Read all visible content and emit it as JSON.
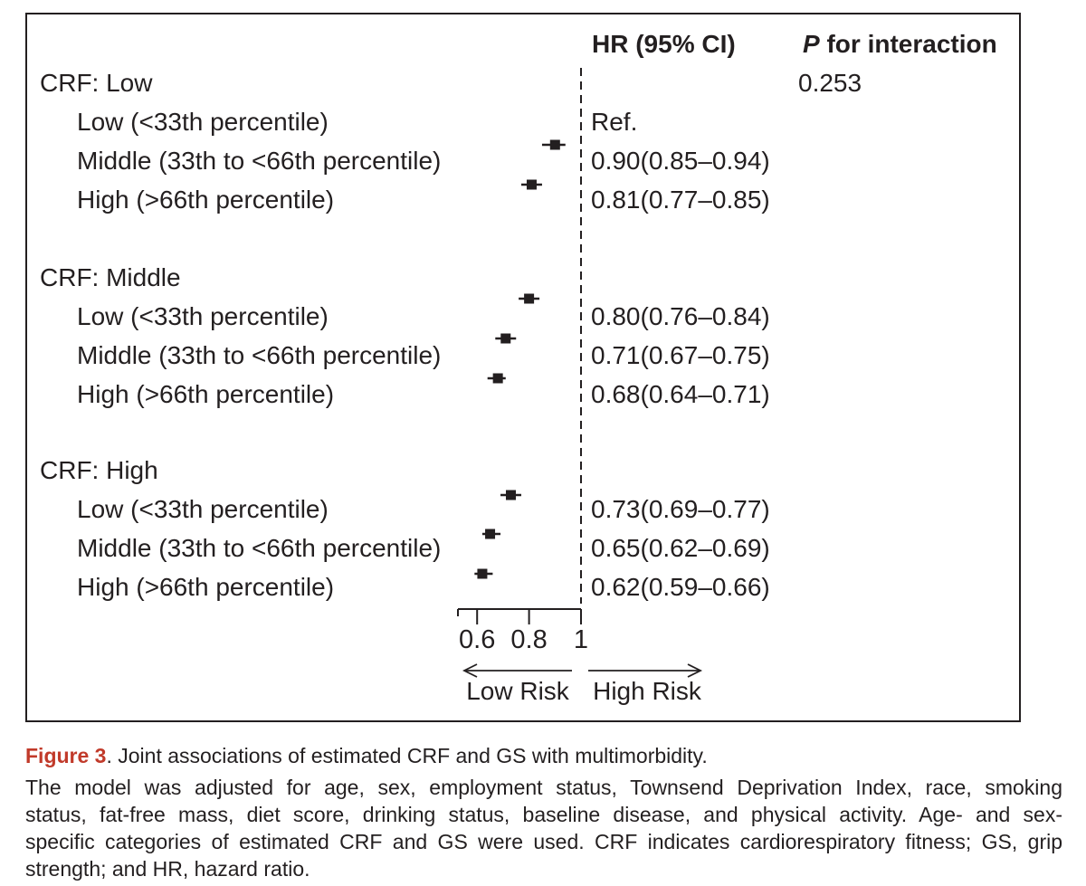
{
  "colors": {
    "ink": "#231f20",
    "figure_label_red": "#c13a2a"
  },
  "figure": {
    "header": {
      "hr_ci": "HR (95% CI)",
      "p_label": "P",
      "p_rest": " for interaction"
    },
    "p_value": "0.253"
  },
  "chart_data": {
    "type": "forest",
    "title": "Joint associations of estimated CRF and GS with multimorbidity",
    "x_axis": {
      "scale": "linear",
      "range_shown": [
        0.55,
        1.0
      ],
      "ticks": [
        0.6,
        0.8,
        1
      ],
      "tick_labels": [
        "0.6",
        "0.8",
        "1"
      ],
      "reference_line": 1.0,
      "direction_left": "Low Risk",
      "direction_right": "High Risk"
    },
    "p_for_interaction": "0.253",
    "groups": [
      {
        "label": "CRF: Low",
        "rows": [
          {
            "label": "Low (<33th percentile)",
            "hr_text": "Ref.",
            "hr": null,
            "lo": null,
            "hi": null
          },
          {
            "label": "Middle (33th to <66th percentile)",
            "hr_text": "0.90(0.85–0.94)",
            "hr": 0.9,
            "lo": 0.85,
            "hi": 0.94
          },
          {
            "label": "High (>66th percentile)",
            "hr_text": "0.81(0.77–0.85)",
            "hr": 0.81,
            "lo": 0.77,
            "hi": 0.85
          }
        ]
      },
      {
        "label": "CRF: Middle",
        "rows": [
          {
            "label": "Low (<33th percentile)",
            "hr_text": "0.80(0.76–0.84)",
            "hr": 0.8,
            "lo": 0.76,
            "hi": 0.84
          },
          {
            "label": "Middle (33th to <66th percentile)",
            "hr_text": "0.71(0.67–0.75)",
            "hr": 0.71,
            "lo": 0.67,
            "hi": 0.75
          },
          {
            "label": "High (>66th percentile)",
            "hr_text": "0.68(0.64–0.71)",
            "hr": 0.68,
            "lo": 0.64,
            "hi": 0.71
          }
        ]
      },
      {
        "label": "CRF: High",
        "rows": [
          {
            "label": "Low (<33th percentile)",
            "hr_text": "0.73(0.69–0.77)",
            "hr": 0.73,
            "lo": 0.69,
            "hi": 0.77
          },
          {
            "label": "Middle (33th to <66th percentile)",
            "hr_text": "0.65(0.62–0.69)",
            "hr": 0.65,
            "lo": 0.62,
            "hi": 0.69
          },
          {
            "label": "High (>66th percentile)",
            "hr_text": "0.62(0.59–0.66)",
            "hr": 0.62,
            "lo": 0.59,
            "hi": 0.66
          }
        ]
      }
    ]
  },
  "caption": {
    "label": "Figure 3",
    "title_rest": ". Joint associations of estimated CRF and GS with multimorbidity.",
    "body_lines": [
      "The model was adjusted for age, sex, employment status, Townsend Deprivation Index, race, smoking",
      "status, fat-free mass, diet score, drinking status, baseline disease, and physical activity. Age- and sex-",
      "specific categories of estimated CRF and GS were used. CRF indicates cardiorespiratory fitness; GS, grip",
      "strength; and HR, hazard ratio."
    ]
  }
}
